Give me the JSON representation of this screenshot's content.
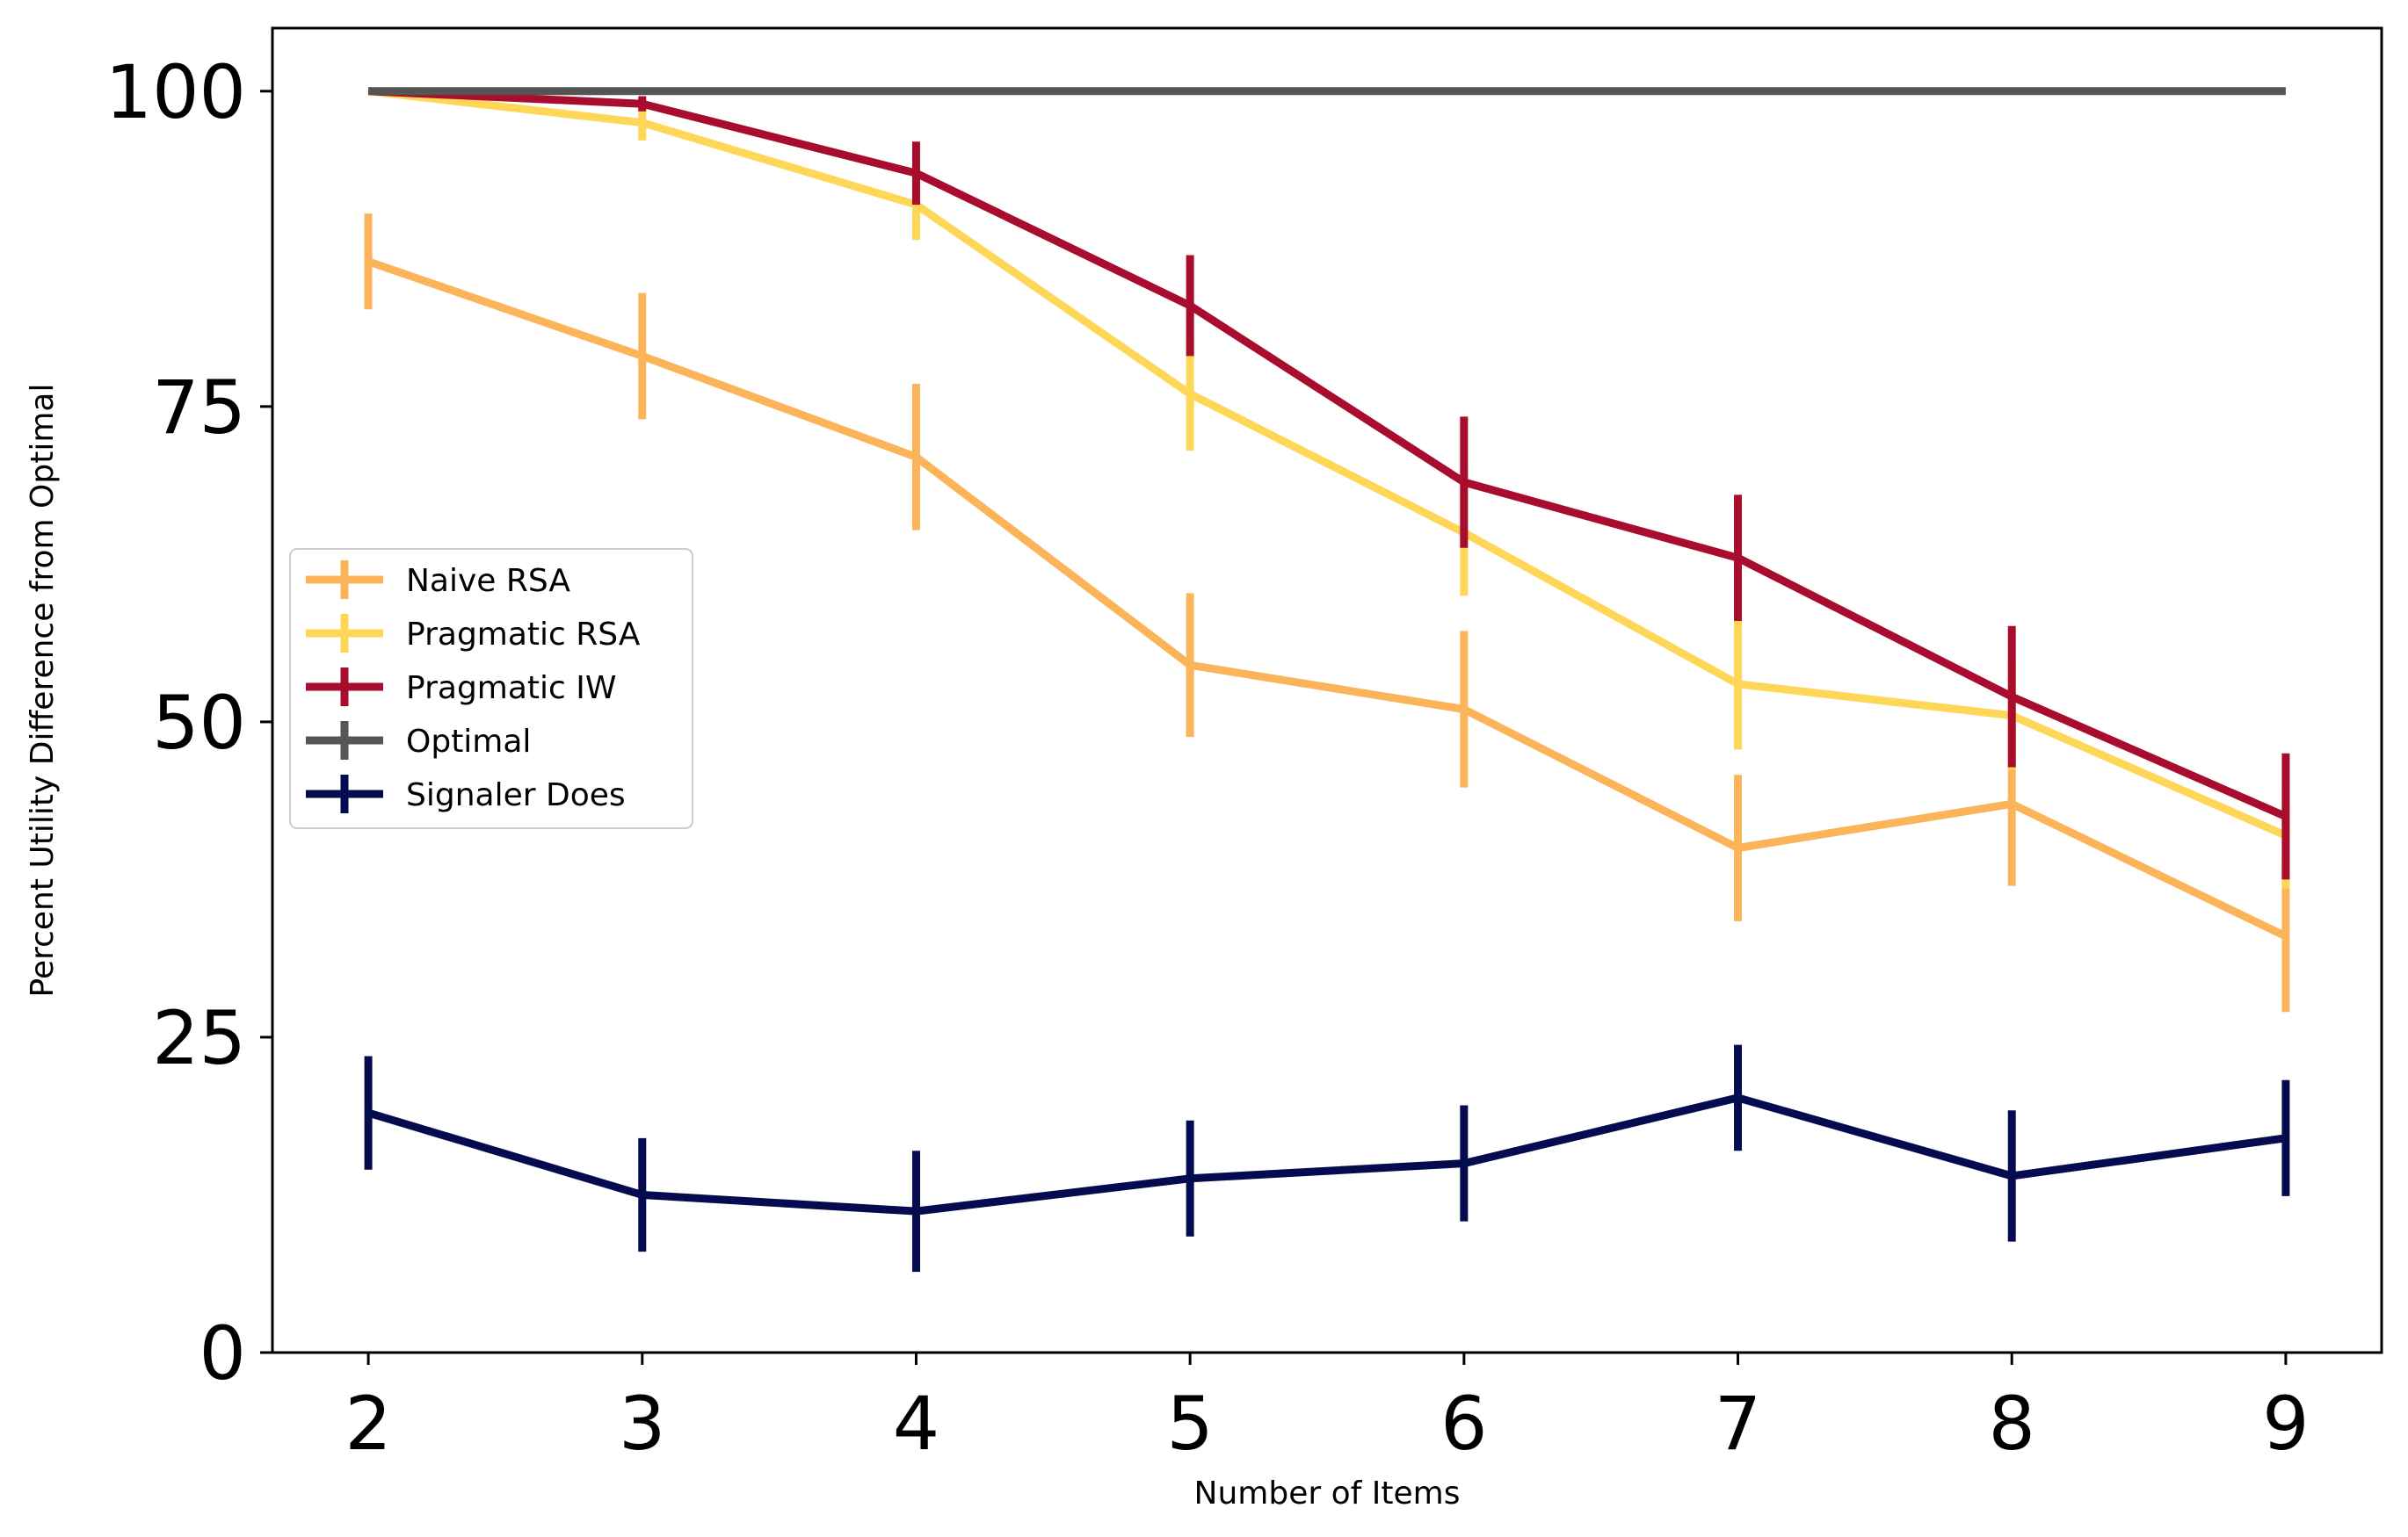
{
  "chart_data": {
    "type": "line",
    "title": "",
    "xlabel": "Number of Items",
    "ylabel": "Percent Utility Difference from Optimal",
    "x": [
      2,
      3,
      4,
      5,
      6,
      7,
      8,
      9
    ],
    "xlim": [
      1.65,
      9.35
    ],
    "ylim": [
      0,
      105
    ],
    "xticks": [
      "2",
      "3",
      "4",
      "5",
      "6",
      "7",
      "8",
      "9"
    ],
    "yticks": [
      "0",
      "25",
      "50",
      "75",
      "100"
    ],
    "ytick_values": [
      0,
      25,
      50,
      75,
      100
    ],
    "grid": false,
    "legend_position": "center-left",
    "series": [
      {
        "name": "Naive RSA",
        "color": "#fbb45a",
        "values": [
          86.5,
          79,
          71,
          54.5,
          51,
          40,
          43.5,
          33
        ],
        "errors": [
          3.8,
          5,
          5.8,
          5.7,
          6.2,
          5.8,
          6.5,
          6
        ]
      },
      {
        "name": "Pragmatic RSA",
        "color": "#fed758",
        "values": [
          100,
          97.5,
          91,
          76,
          65,
          53,
          50.5,
          41
        ],
        "errors": [
          0,
          1.4,
          2.8,
          4.5,
          5,
          5.2,
          4.3,
          4.2
        ]
      },
      {
        "name": "Pragmatic IW",
        "color": "#a90d2e",
        "values": [
          100,
          99,
          93.5,
          83,
          69,
          63,
          52,
          42.5
        ],
        "errors": [
          0,
          0.6,
          2.5,
          4,
          5.2,
          5,
          5.6,
          5
        ]
      },
      {
        "name": "Optimal",
        "color": "#555555",
        "values": [
          100,
          100,
          100,
          100,
          100,
          100,
          100,
          100
        ],
        "errors": [
          0,
          0,
          0,
          0,
          0,
          0,
          0,
          0
        ]
      },
      {
        "name": "Signaler Does",
        "color": "#040c4f",
        "values": [
          19,
          12.5,
          11.2,
          13.8,
          15,
          20.2,
          14,
          17
        ],
        "errors": [
          4.5,
          4.5,
          4.8,
          4.6,
          4.6,
          4.2,
          5.2,
          4.6
        ]
      }
    ]
  }
}
